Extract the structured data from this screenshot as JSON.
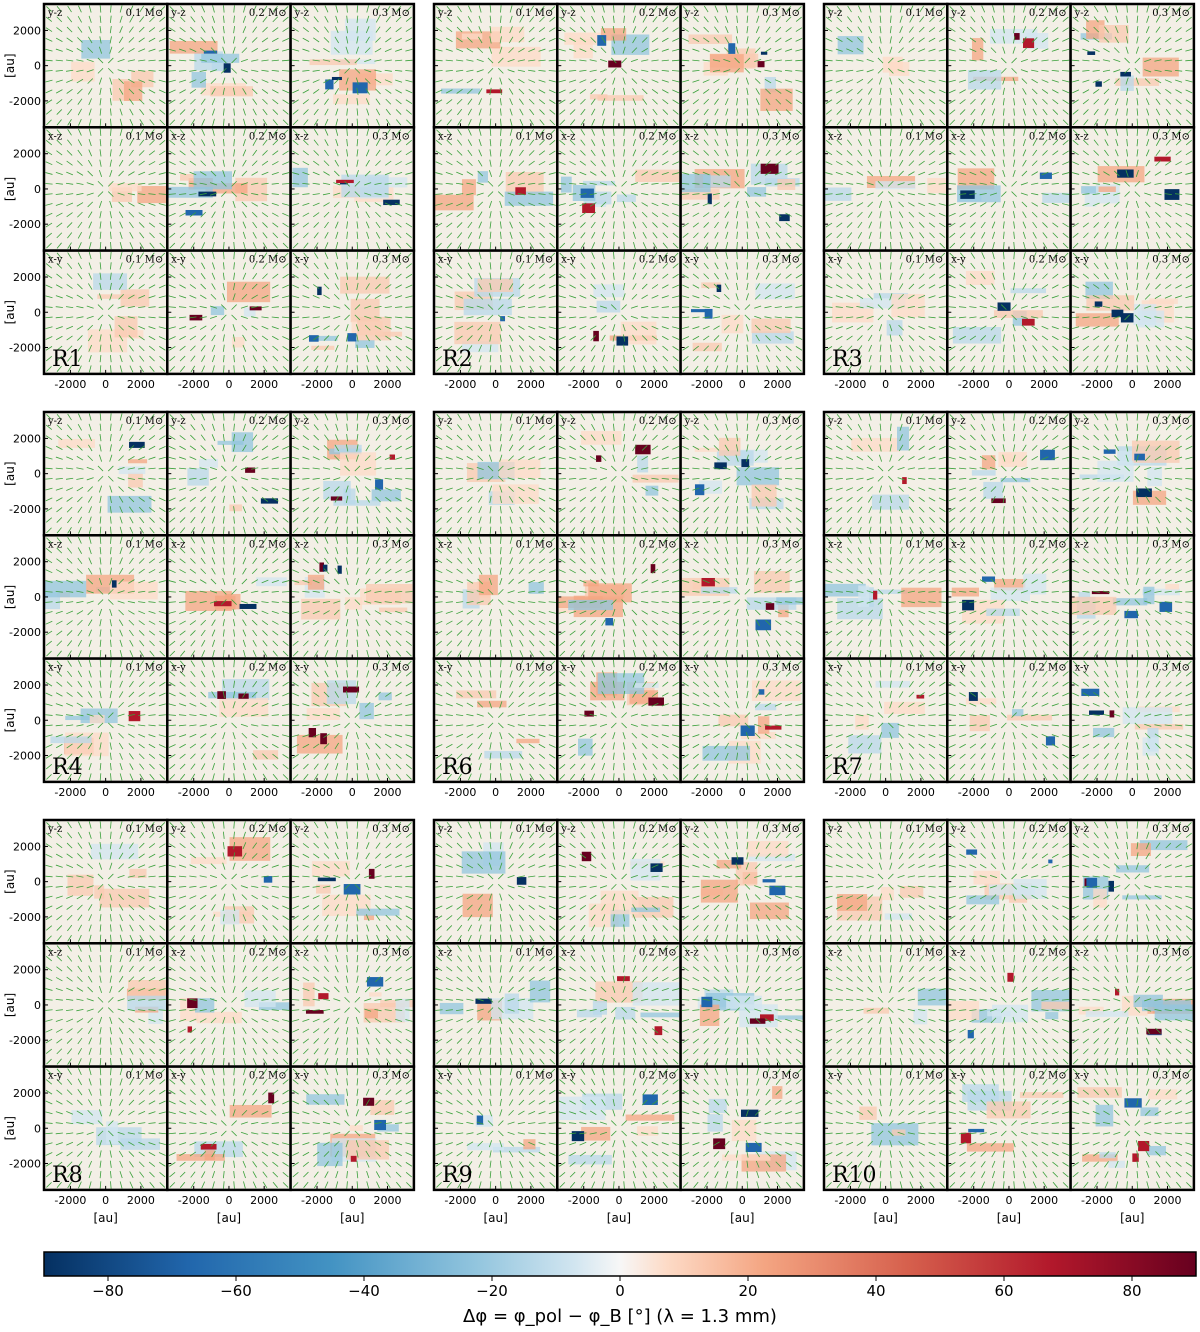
{
  "figure": {
    "colorbar_label": "Δφ = φ_pol − φ_B [°] (λ = 1.3 mm)",
    "axis_unit_label": "[au]"
  },
  "chart_data": {
    "type": "heatmap",
    "description_free": true,
    "panel_groups": [
      "R1",
      "R2",
      "R3",
      "R4",
      "R6",
      "R7",
      "R8",
      "R9",
      "R10"
    ],
    "group_layout": [
      [
        "R1",
        "R2",
        "R3"
      ],
      [
        "R4",
        "R6",
        "R7"
      ],
      [
        "R8",
        "R9",
        "R10"
      ]
    ],
    "projections": [
      "y-z",
      "x-z",
      "x-y"
    ],
    "masses": [
      "0.1 M⊙",
      "0.2 M⊙",
      "0.3 M⊙"
    ],
    "x_ticks": [
      -2000,
      0,
      2000
    ],
    "y_ticks": [
      2000,
      0,
      -2000
    ],
    "xlim": [
      -3500,
      3500
    ],
    "ylim": [
      -3500,
      3500
    ],
    "xlabel": "[au]",
    "ylabel": "[au]",
    "colorbar": {
      "min": -90,
      "max": 90,
      "ticks": [
        -80,
        -60,
        -40,
        -20,
        0,
        20,
        40,
        60,
        80
      ],
      "colormap": "RdBu_r",
      "low_color": "#053061",
      "mid_color": "#f7f7f7",
      "high_color": "#67001f"
    },
    "vector_color": "#3aa03a"
  }
}
